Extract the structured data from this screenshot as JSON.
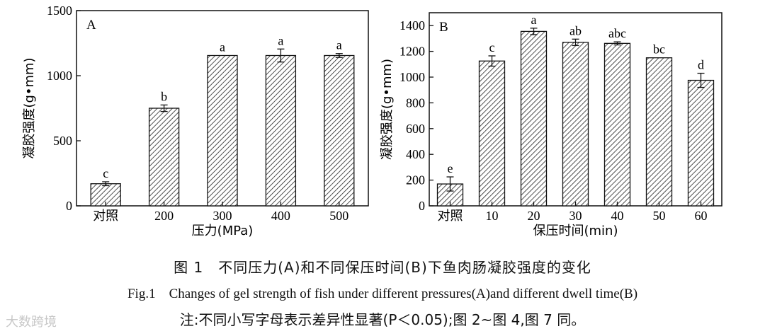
{
  "chart_data": [
    {
      "type": "bar",
      "panel_label": "A",
      "xlabel": "压力(MPa)",
      "ylabel": "凝胶强度(g•mm)",
      "categories": [
        "对照",
        "200",
        "300",
        "400",
        "500"
      ],
      "values": [
        170,
        750,
        1155,
        1155,
        1155
      ],
      "errors": [
        15,
        25,
        0,
        50,
        15
      ],
      "letters": [
        "c",
        "b",
        "a",
        "a",
        "a"
      ],
      "ylim": [
        0,
        1500
      ],
      "yticks": [
        0,
        500,
        1000,
        1500
      ]
    },
    {
      "type": "bar",
      "panel_label": "B",
      "xlabel": "保压时间(min)",
      "ylabel": "凝胶强度(g•mm)",
      "categories": [
        "对照",
        "10",
        "20",
        "30",
        "40",
        "50",
        "60"
      ],
      "values": [
        170,
        1125,
        1355,
        1270,
        1262,
        1150,
        975
      ],
      "errors": [
        55,
        40,
        25,
        25,
        12,
        0,
        55
      ],
      "letters": [
        "e",
        "c",
        "a",
        "ab",
        "abc",
        "bc",
        "d"
      ],
      "ylim": [
        0,
        1500
      ],
      "yticks": [
        0,
        200,
        400,
        600,
        800,
        1000,
        1200,
        1400
      ]
    }
  ],
  "caption": {
    "chinese": "图 1　不同压力(A)和不同保压时间(B)下鱼肉肠凝胶强度的变化",
    "english": "Fig.1　Changes of gel strength of fish under different pressures(A)and different dwell time(B)",
    "note": "注:不同小写字母表示差异性显著(P＜0.05);图 2~图 4,图 7 同。"
  },
  "watermark": "大数跨境"
}
